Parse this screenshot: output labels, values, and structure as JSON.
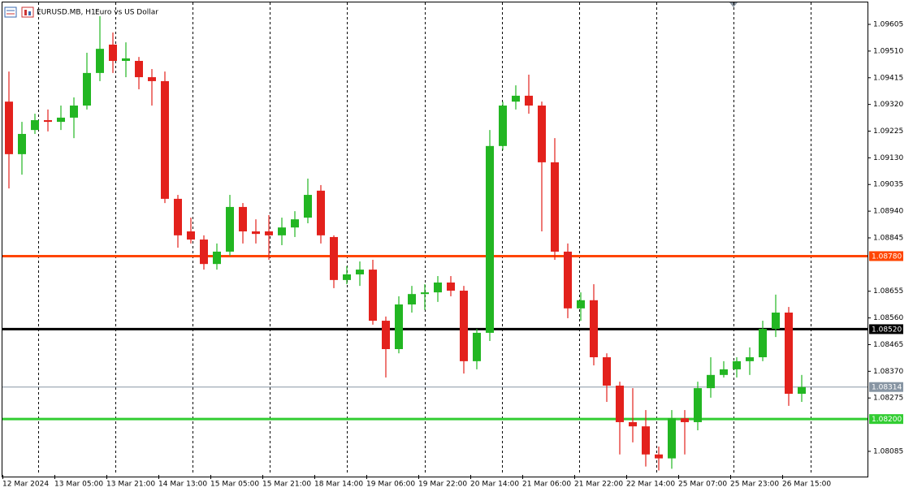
{
  "chart_data": {
    "type": "candlestick",
    "title": "EURUSD.MB, H1:",
    "subtitle": "Euro vs US Dollar",
    "categories": [
      "12 Mar 2024",
      null,
      null,
      null,
      "13 Mar 05:00",
      null,
      null,
      null,
      "13 Mar 21:00",
      null,
      null,
      null,
      "14 Mar 13:00",
      null,
      null,
      null,
      "15 Mar 05:00",
      null,
      null,
      null,
      "15 Mar 21:00",
      null,
      null,
      null,
      "18 Mar 14:00",
      null,
      null,
      null,
      "19 Mar 06:00",
      null,
      null,
      null,
      "19 Mar 22:00",
      null,
      null,
      null,
      "20 Mar 14:00",
      null,
      null,
      null,
      "21 Mar 06:00",
      null,
      null,
      null,
      "21 Mar 22:00",
      null,
      null,
      null,
      "22 Mar 14:00",
      null,
      null,
      null,
      "25 Mar 07:00",
      null,
      null,
      null,
      "25 Mar 23:00",
      null,
      null,
      null,
      "26 Mar 15:00",
      null
    ],
    "open": [
      1.0933,
      1.09143,
      1.09229,
      1.09264,
      1.09258,
      1.09273,
      1.09316,
      1.09432,
      1.09533,
      1.09475,
      1.09475,
      1.09417,
      1.09403,
      1.08984,
      1.08868,
      1.08839,
      1.08752,
      1.08796,
      1.08955,
      1.08868,
      1.08868,
      1.08854,
      1.08882,
      1.08917,
      1.09013,
      1.08848,
      1.08695,
      1.08715,
      1.08732,
      1.0855,
      1.08449,
      1.08608,
      1.08645,
      1.08651,
      1.08686,
      1.08657,
      1.08406,
      1.08507,
      1.09172,
      1.0933,
      1.09351,
      1.09316,
      1.09114,
      1.08796,
      1.08594,
      1.08623,
      1.0842,
      1.08319,
      1.08189,
      1.08174,
      1.08074,
      1.0806,
      1.08203,
      1.08189,
      1.0831,
      1.08357,
      1.08377,
      1.08406,
      1.0842,
      1.08521,
      1.08579,
      1.0829
    ],
    "high": [
      1.09437,
      1.09258,
      1.09287,
      1.09302,
      1.09316,
      1.09345,
      1.09504,
      1.09634,
      1.09576,
      1.09541,
      1.09489,
      1.09446,
      1.09437,
      1.08998,
      1.08917,
      1.08854,
      1.08825,
      1.08998,
      1.08969,
      1.08911,
      1.08926,
      1.08917,
      1.0894,
      1.09056,
      1.09033,
      1.08854,
      1.08744,
      1.08761,
      1.08767,
      1.08565,
      1.08637,
      1.08674,
      1.0868,
      1.08709,
      1.08709,
      1.08674,
      1.08521,
      1.09229,
      1.0933,
      1.09388,
      1.09426,
      1.0933,
      1.092,
      1.08825,
      1.08651,
      1.0868,
      1.08434,
      1.08333,
      1.0831,
      1.08232,
      1.08102,
      1.08232,
      1.08232,
      1.08333,
      1.0842,
      1.08406,
      1.0842,
      1.08455,
      1.0855,
      1.08643,
      1.08599,
      1.08357
    ],
    "low": [
      1.09021,
      1.0907,
      1.09215,
      1.09224,
      1.09229,
      1.092,
      1.09302,
      1.09403,
      1.09432,
      1.09417,
      1.09374,
      1.09316,
      1.08969,
      1.0881,
      1.08825,
      1.08732,
      1.08732,
      1.08781,
      1.08825,
      1.08825,
      1.08767,
      1.08819,
      1.08848,
      1.08897,
      1.08825,
      1.08666,
      1.0868,
      1.08674,
      1.08536,
      1.08348,
      1.08434,
      1.08579,
      1.08588,
      1.08617,
      1.08637,
      1.08362,
      1.08377,
      1.08478,
      1.09157,
      1.09302,
      1.09287,
      1.08868,
      1.08767,
      1.08559,
      1.0855,
      1.08391,
      1.08261,
      1.08074,
      1.08117,
      1.08031,
      1.08017,
      1.08023,
      1.08074,
      1.0816,
      1.08276,
      1.08348,
      1.08348,
      1.08357,
      1.08406,
      1.08492,
      1.08247,
      1.08261
    ],
    "close": [
      1.09143,
      1.09215,
      1.09264,
      1.09258,
      1.09273,
      1.09316,
      1.09432,
      1.09518,
      1.09475,
      1.09484,
      1.09417,
      1.09403,
      1.08984,
      1.08854,
      1.08839,
      1.08752,
      1.08796,
      1.08955,
      1.08868,
      1.08859,
      1.08854,
      1.08882,
      1.08911,
      1.08998,
      1.08854,
      1.08695,
      1.08715,
      1.08732,
      1.0855,
      1.08449,
      1.08608,
      1.08645,
      1.08651,
      1.08686,
      1.08657,
      1.08406,
      1.08507,
      1.09172,
      1.09316,
      1.09351,
      1.09316,
      1.09114,
      1.08796,
      1.08594,
      1.08623,
      1.0842,
      1.08319,
      1.08189,
      1.08174,
      1.08074,
      1.0806,
      1.08203,
      1.08189,
      1.0831,
      1.08357,
      1.08377,
      1.08406,
      1.0842,
      1.08521,
      1.08579,
      1.0829,
      1.08314
    ],
    "up_color": "#22b622",
    "down_color": "#e3211c",
    "ylim": [
      1.08001,
      1.09686
    ],
    "yticks": [
      1.09605,
      {
        "value": 1.0951,
        "label": "1.09510"
      },
      1.09415,
      {
        "value": 1.0932,
        "label": "1.09320"
      },
      1.09225,
      {
        "value": 1.0913,
        "label": "1.09130"
      },
      1.09035,
      {
        "value": 1.0894,
        "label": "1.08940"
      },
      1.08845,
      1.08655,
      {
        "value": 1.0856,
        "label": "1.08560"
      },
      1.08465,
      {
        "value": 1.0837,
        "label": "1.08370"
      },
      1.08275,
      1.08085
    ],
    "levels": [
      {
        "value": 1.0878,
        "label": "1.08780",
        "color": "#ff4500"
      },
      {
        "value": 1.0852,
        "label": "1.08520",
        "color": "#000000"
      },
      {
        "value": 1.08314,
        "color": "#8795a3"
      },
      {
        "value": 1.082,
        "label": "1.08200",
        "color": "#32cd32"
      }
    ]
  }
}
